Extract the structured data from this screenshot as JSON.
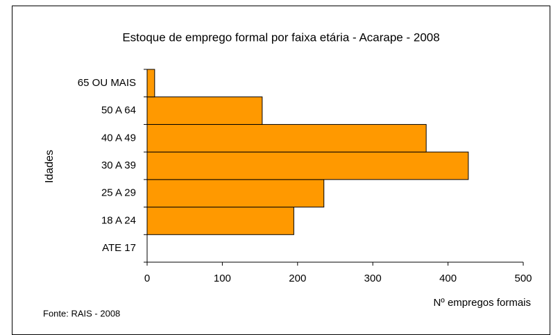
{
  "chart_data": {
    "type": "hbar",
    "title": "Estoque de emprego formal por faixa etária - Acarape - 2008",
    "categories": [
      "ATE 17",
      "18 A 24",
      "25 A 29",
      "30 A 39",
      "40 A 49",
      "50 A 64",
      "65 OU MAIS"
    ],
    "values": [
      0,
      195,
      235,
      427,
      371,
      153,
      10
    ],
    "color": "#ff9900",
    "xlim": [
      0,
      500
    ],
    "xticks": [
      0,
      100,
      200,
      300,
      400,
      500
    ],
    "grid": false,
    "xlabel": "Nº empregos formais",
    "ylabel": "Idades",
    "source": "Fonte: RAIS - 2008"
  }
}
